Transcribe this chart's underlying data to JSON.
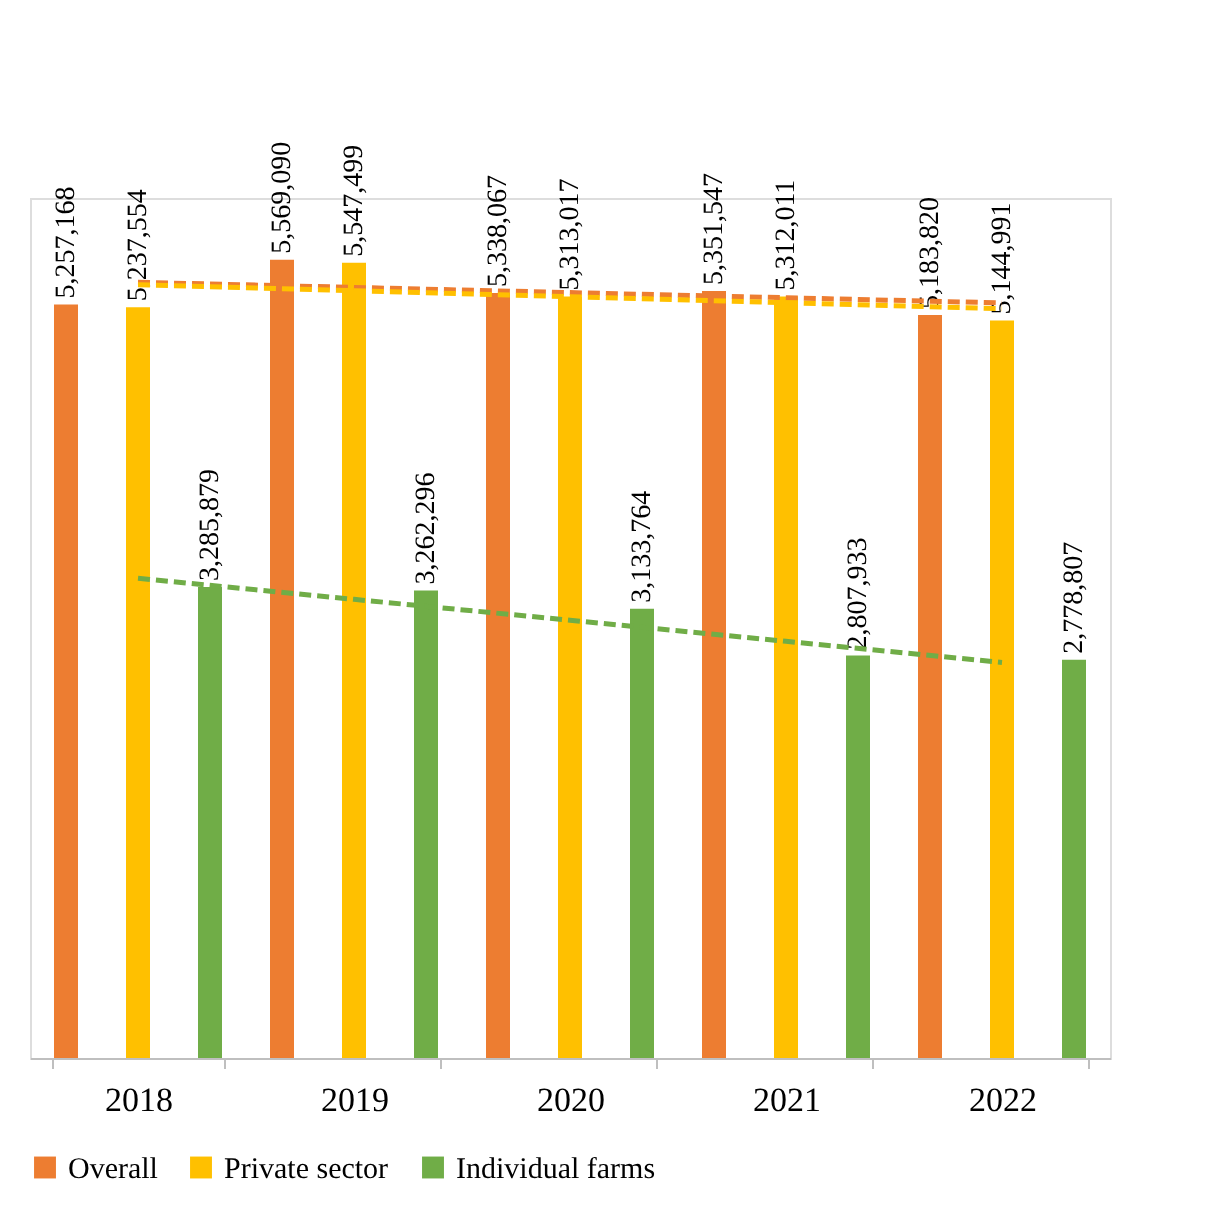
{
  "chart_data": {
    "type": "bar",
    "categories": [
      "2018",
      "2019",
      "2020",
      "2021",
      "2022"
    ],
    "series": [
      {
        "name": "Overall",
        "color": "#ed7d31",
        "values": [
          5257168,
          5569090,
          5338067,
          5351547,
          5183820
        ],
        "value_labels": [
          "5,257,168",
          "5,569,090",
          "5,338,067",
          "5,351,547",
          "5,183,820"
        ]
      },
      {
        "name": "Private sector",
        "color": "#ffc000",
        "values": [
          5237554,
          5547499,
          5313017,
          5312011,
          5144991
        ],
        "value_labels": [
          "5,237,554",
          "5,547,499",
          "5,313,017",
          "5,312,011",
          "5,144,991"
        ]
      },
      {
        "name": "Individual farms",
        "color": "#70ad47",
        "values": [
          3285879,
          3262296,
          3133764,
          2807933,
          2778807
        ],
        "value_labels": [
          "3,285,879",
          "3,262,296",
          "3,133,764",
          "2,807,933",
          "2,778,807"
        ]
      },
      {
        "type": "line",
        "color": "#ed7d31",
        "line_style": "dashed",
        "values": [
          5412000,
          5376000,
          5340000,
          5304000,
          5268000
        ]
      },
      {
        "type": "line",
        "color": "#ffc000",
        "line_style": "dashed",
        "values": [
          5395000,
          5353000,
          5311000,
          5269000,
          5227000
        ]
      },
      {
        "type": "line",
        "color": "#70ad47",
        "line_style": "dashed",
        "values": [
          3347000,
          3200000,
          3054000,
          2907000,
          2760000
        ]
      }
    ],
    "tick_labels": "x",
    "legend": "bottom"
  }
}
